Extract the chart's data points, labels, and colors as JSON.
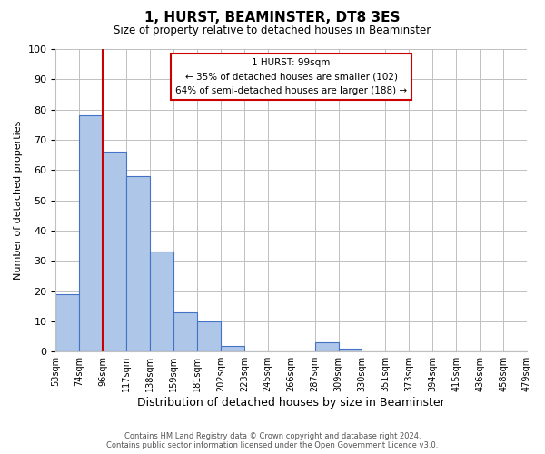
{
  "title": "1, HURST, BEAMINSTER, DT8 3ES",
  "subtitle": "Size of property relative to detached houses in Beaminster",
  "xlabel": "Distribution of detached houses by size in Beaminster",
  "ylabel": "Number of detached properties",
  "bin_labels": [
    "53sqm",
    "74sqm",
    "96sqm",
    "117sqm",
    "138sqm",
    "159sqm",
    "181sqm",
    "202sqm",
    "223sqm",
    "245sqm",
    "266sqm",
    "287sqm",
    "309sqm",
    "330sqm",
    "351sqm",
    "373sqm",
    "394sqm",
    "415sqm",
    "436sqm",
    "458sqm",
    "479sqm"
  ],
  "bar_heights": [
    19,
    78,
    66,
    58,
    33,
    13,
    10,
    2,
    0,
    0,
    0,
    3,
    1,
    0,
    0,
    0,
    0,
    0,
    0,
    0
  ],
  "bar_color": "#aec6e8",
  "bar_edge_color": "#4472c4",
  "vline_x": 2,
  "vline_color": "#cc0000",
  "ylim": [
    0,
    100
  ],
  "yticks": [
    0,
    10,
    20,
    30,
    40,
    50,
    60,
    70,
    80,
    90,
    100
  ],
  "annotation_title": "1 HURST: 99sqm",
  "annotation_line1": "← 35% of detached houses are smaller (102)",
  "annotation_line2": "64% of semi-detached houses are larger (188) →",
  "annotation_box_color": "#ffffff",
  "annotation_box_edge": "#cc0000",
  "footer_line1": "Contains HM Land Registry data © Crown copyright and database right 2024.",
  "footer_line2": "Contains public sector information licensed under the Open Government Licence v3.0.",
  "background_color": "#ffffff",
  "grid_color": "#c0c0c0"
}
